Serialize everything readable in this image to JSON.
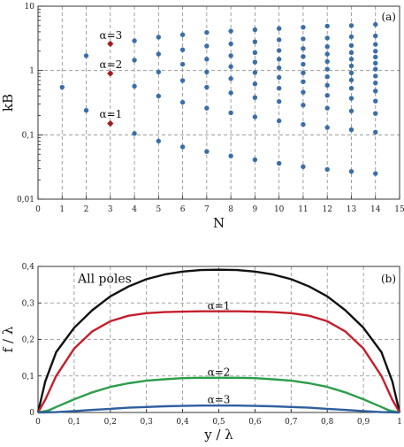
{
  "chart_data": [
    {
      "type": "scatter",
      "panel_label": "(a)",
      "xlabel": "N",
      "ylabel": "kB",
      "xlim": [
        0,
        15
      ],
      "ylim": [
        0.01,
        10
      ],
      "yscale": "log",
      "grid": true,
      "x_ticks": [
        0,
        1,
        2,
        3,
        4,
        5,
        6,
        7,
        8,
        9,
        10,
        11,
        12,
        13,
        14,
        15
      ],
      "y_ticks": [
        {
          "value": 0.01,
          "label": "0,01"
        },
        {
          "value": 0.1,
          "label": "0,1"
        },
        {
          "value": 1,
          "label": "1"
        },
        {
          "value": 10,
          "label": "10"
        }
      ],
      "colors": {
        "points": "#3a6ea8",
        "highlight": "#a51c1c"
      },
      "series": [
        {
          "role": "poles",
          "points": [
            [
              1,
              0.55
            ],
            [
              2,
              0.24
            ],
            [
              2,
              1.7
            ],
            [
              3,
              0.15
            ],
            [
              3,
              0.9
            ],
            [
              3,
              2.6
            ],
            [
              4,
              0.105
            ],
            [
              4,
              0.57
            ],
            [
              4,
              1.45
            ],
            [
              4,
              2.9
            ],
            [
              5,
              0.08
            ],
            [
              5,
              0.4
            ],
            [
              5,
              0.95
            ],
            [
              5,
              1.8
            ],
            [
              5,
              3.3
            ],
            [
              6,
              0.065
            ],
            [
              6,
              0.32
            ],
            [
              6,
              0.7
            ],
            [
              6,
              1.25
            ],
            [
              6,
              2.1
            ],
            [
              6,
              3.6
            ],
            [
              7,
              0.055
            ],
            [
              7,
              0.26
            ],
            [
              7,
              0.55
            ],
            [
              7,
              0.95
            ],
            [
              7,
              1.5
            ],
            [
              7,
              2.4
            ],
            [
              7,
              3.9
            ],
            [
              8,
              0.047
            ],
            [
              8,
              0.22
            ],
            [
              8,
              0.45
            ],
            [
              8,
              0.75
            ],
            [
              8,
              1.15
            ],
            [
              8,
              1.7
            ],
            [
              8,
              2.6
            ],
            [
              8,
              4.1
            ],
            [
              9,
              0.041
            ],
            [
              9,
              0.19
            ],
            [
              9,
              0.38
            ],
            [
              9,
              0.62
            ],
            [
              9,
              0.93
            ],
            [
              9,
              1.35
            ],
            [
              9,
              1.9
            ],
            [
              9,
              2.8
            ],
            [
              9,
              4.3
            ],
            [
              10,
              0.036
            ],
            [
              10,
              0.165
            ],
            [
              10,
              0.33
            ],
            [
              10,
              0.53
            ],
            [
              10,
              0.78
            ],
            [
              10,
              1.1
            ],
            [
              10,
              1.5
            ],
            [
              10,
              2.05
            ],
            [
              10,
              3.0
            ],
            [
              10,
              4.5
            ],
            [
              11,
              0.032
            ],
            [
              11,
              0.145
            ],
            [
              11,
              0.29
            ],
            [
              11,
              0.46
            ],
            [
              11,
              0.67
            ],
            [
              11,
              0.92
            ],
            [
              11,
              1.25
            ],
            [
              11,
              1.65
            ],
            [
              11,
              2.2
            ],
            [
              11,
              3.1
            ],
            [
              11,
              4.7
            ],
            [
              12,
              0.029
            ],
            [
              12,
              0.13
            ],
            [
              12,
              0.26
            ],
            [
              12,
              0.41
            ],
            [
              12,
              0.59
            ],
            [
              12,
              0.8
            ],
            [
              12,
              1.05
            ],
            [
              12,
              1.38
            ],
            [
              12,
              1.8
            ],
            [
              12,
              2.35
            ],
            [
              12,
              3.2
            ],
            [
              12,
              4.9
            ],
            [
              13,
              0.027
            ],
            [
              13,
              0.12
            ],
            [
              13,
              0.235
            ],
            [
              13,
              0.37
            ],
            [
              13,
              0.53
            ],
            [
              13,
              0.71
            ],
            [
              13,
              0.92
            ],
            [
              13,
              1.18
            ],
            [
              13,
              1.5
            ],
            [
              13,
              1.9
            ],
            [
              13,
              2.45
            ],
            [
              13,
              3.35
            ],
            [
              13,
              5.0
            ],
            [
              14,
              0.025
            ],
            [
              14,
              0.11
            ],
            [
              14,
              0.215
            ],
            [
              14,
              0.335
            ],
            [
              14,
              0.48
            ],
            [
              14,
              0.64
            ],
            [
              14,
              0.82
            ],
            [
              14,
              1.05
            ],
            [
              14,
              1.3
            ],
            [
              14,
              1.62
            ],
            [
              14,
              2.0
            ],
            [
              14,
              2.55
            ],
            [
              14,
              3.45
            ],
            [
              14,
              5.2
            ]
          ]
        },
        {
          "role": "highlighted",
          "points": [
            [
              3,
              0.15
            ],
            [
              3,
              0.9
            ],
            [
              3,
              2.6
            ]
          ]
        }
      ],
      "annotations": [
        {
          "text": "α=3",
          "x": 2.55,
          "y": 3.1
        },
        {
          "text": "α=2",
          "x": 2.55,
          "y": 1.08
        },
        {
          "text": "α=1",
          "x": 2.55,
          "y": 0.185
        }
      ]
    },
    {
      "type": "line",
      "panel_label": "(b)",
      "xlabel": "y / λ",
      "ylabel": "f / λ",
      "xlim": [
        0,
        1
      ],
      "ylim": [
        0,
        0.4
      ],
      "grid": true,
      "x_ticks": [
        {
          "value": 0,
          "label": "0"
        },
        {
          "value": 0.1,
          "label": "0,1"
        },
        {
          "value": 0.2,
          "label": "0,2"
        },
        {
          "value": 0.3,
          "label": "0,3"
        },
        {
          "value": 0.4,
          "label": "0,4"
        },
        {
          "value": 0.5,
          "label": "0,5"
        },
        {
          "value": 0.6,
          "label": "0,6"
        },
        {
          "value": 0.7,
          "label": "0,7"
        },
        {
          "value": 0.8,
          "label": "0,8"
        },
        {
          "value": 0.9,
          "label": "0,9"
        },
        {
          "value": 1,
          "label": "1"
        }
      ],
      "y_ticks": [
        {
          "value": 0,
          "label": "0"
        },
        {
          "value": 0.1,
          "label": "0,1"
        },
        {
          "value": 0.2,
          "label": "0,2"
        },
        {
          "value": 0.3,
          "label": "0,3"
        },
        {
          "value": 0.4,
          "label": "0,4"
        }
      ],
      "series": [
        {
          "name": "All poles",
          "color": "#111111",
          "x": [
            0,
            0.02,
            0.05,
            0.1,
            0.15,
            0.2,
            0.25,
            0.3,
            0.35,
            0.4,
            0.45,
            0.5,
            0.55,
            0.6,
            0.65,
            0.7,
            0.75,
            0.8,
            0.85,
            0.9,
            0.95,
            0.98,
            1
          ],
          "y": [
            0,
            0.085,
            0.165,
            0.232,
            0.28,
            0.318,
            0.345,
            0.365,
            0.378,
            0.386,
            0.39,
            0.391,
            0.39,
            0.386,
            0.378,
            0.365,
            0.345,
            0.318,
            0.28,
            0.232,
            0.165,
            0.085,
            0
          ]
        },
        {
          "name": "α=1",
          "color": "#c41f2d",
          "x": [
            0,
            0.02,
            0.05,
            0.1,
            0.15,
            0.2,
            0.25,
            0.3,
            0.35,
            0.4,
            0.45,
            0.5,
            0.55,
            0.6,
            0.65,
            0.7,
            0.75,
            0.8,
            0.85,
            0.9,
            0.95,
            0.98,
            1
          ],
          "y": [
            0,
            0.035,
            0.1,
            0.175,
            0.222,
            0.25,
            0.265,
            0.272,
            0.275,
            0.276,
            0.277,
            0.277,
            0.277,
            0.276,
            0.275,
            0.272,
            0.265,
            0.25,
            0.222,
            0.175,
            0.1,
            0.035,
            0
          ]
        },
        {
          "name": "α=2",
          "color": "#2c9e4a",
          "x": [
            0,
            0.03,
            0.05,
            0.1,
            0.15,
            0.2,
            0.25,
            0.3,
            0.35,
            0.4,
            0.45,
            0.5,
            0.55,
            0.6,
            0.65,
            0.7,
            0.75,
            0.8,
            0.85,
            0.9,
            0.95,
            0.97,
            1
          ],
          "y": [
            0,
            0.006,
            0.015,
            0.036,
            0.055,
            0.07,
            0.08,
            0.087,
            0.091,
            0.094,
            0.095,
            0.095,
            0.095,
            0.094,
            0.091,
            0.087,
            0.08,
            0.07,
            0.055,
            0.036,
            0.015,
            0.006,
            0
          ]
        },
        {
          "name": "α=3",
          "color": "#2f5fa0",
          "x": [
            0,
            0.05,
            0.1,
            0.15,
            0.2,
            0.25,
            0.3,
            0.35,
            0.4,
            0.45,
            0.5,
            0.55,
            0.6,
            0.65,
            0.7,
            0.75,
            0.8,
            0.85,
            0.9,
            0.95,
            1
          ],
          "y": [
            0,
            0.001,
            0.004,
            0.007,
            0.01,
            0.013,
            0.015,
            0.017,
            0.018,
            0.019,
            0.019,
            0.019,
            0.018,
            0.017,
            0.015,
            0.013,
            0.01,
            0.007,
            0.004,
            0.001,
            0
          ]
        }
      ],
      "annotations": [
        {
          "text": "All poles",
          "x": 0.11,
          "y": 0.355
        },
        {
          "text": "α=1",
          "x": 0.5,
          "y": 0.283
        },
        {
          "text": "α=2",
          "x": 0.5,
          "y": 0.101
        },
        {
          "text": "α=3",
          "x": 0.5,
          "y": 0.025
        }
      ]
    }
  ]
}
